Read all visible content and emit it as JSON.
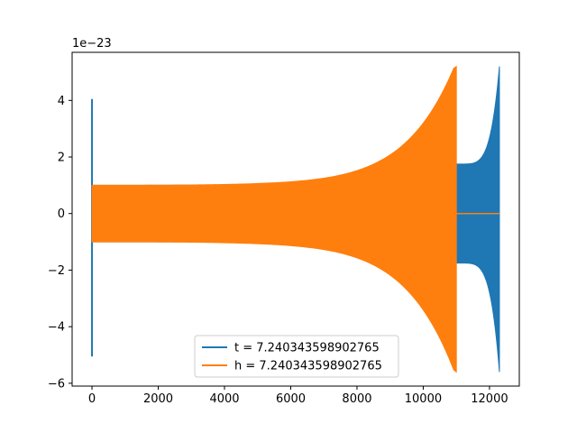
{
  "chart_data": {
    "type": "line",
    "title": "",
    "xlabel": "",
    "ylabel": "",
    "y_offset_label": "1e−23",
    "xlim": [
      -600,
      12900
    ],
    "ylim": [
      -6.1,
      5.7
    ],
    "xticks": [
      0,
      2000,
      4000,
      6000,
      8000,
      10000,
      12000
    ],
    "xtick_labels": [
      "0",
      "2000",
      "4000",
      "6000",
      "8000",
      "10000",
      "12000"
    ],
    "yticks": [
      -6,
      -4,
      -2,
      0,
      2,
      4
    ],
    "ytick_labels": [
      "−6",
      "−4",
      "−2",
      "0",
      "2",
      "4"
    ],
    "grid": false,
    "legend_position": "bottom-center",
    "series": [
      {
        "name": "t = 7.240343598902765",
        "color": "#1f77b4",
        "spike": {
          "x": 0,
          "ymax": 4.05,
          "ymin": -5.05
        },
        "envelope": {
          "x_start": 0,
          "x_end": 11000,
          "amp_start": 1.0,
          "amp_end": 1.75
        },
        "chirp": {
          "x_start": 11000,
          "x_end": 12300,
          "amp_start": 1.75,
          "amp_peak_top": 5.2,
          "amp_peak_bottom": -5.6
        },
        "zero_line": null
      },
      {
        "name": "h = 7.240343598902765",
        "color": "#ff7f0e",
        "envelope": {
          "x_start": 0,
          "x_end": 11000,
          "amp_start": 1.0,
          "amp_peak_top": 5.2,
          "amp_peak_bottom": -5.6
        },
        "zero_line": {
          "x_start": 11000,
          "x_end": 12300,
          "y": 0
        }
      }
    ]
  }
}
